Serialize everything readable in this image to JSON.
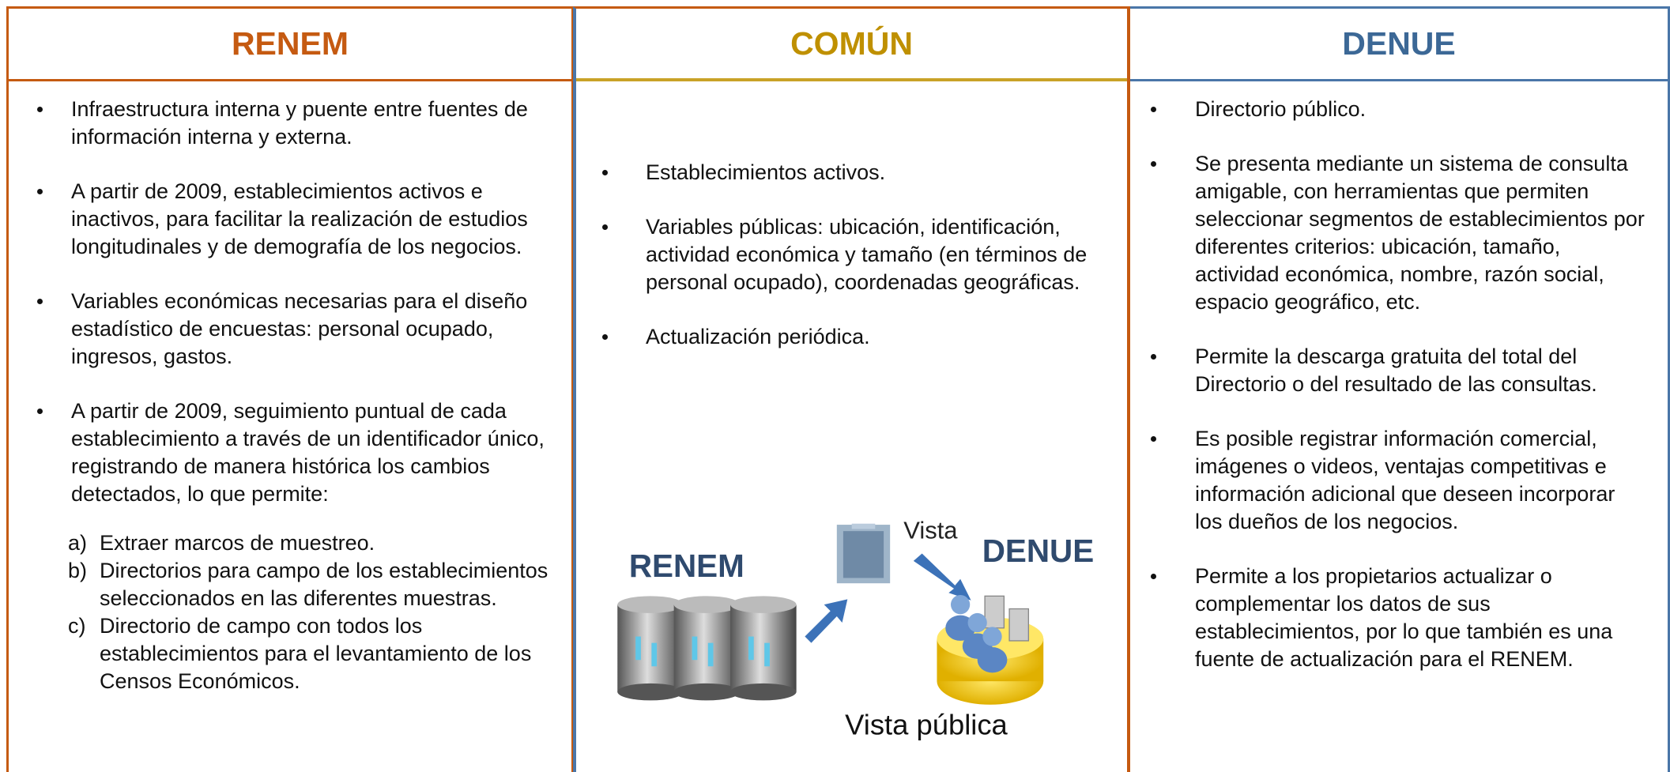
{
  "columns": [
    {
      "title": "RENEM",
      "items": [
        "Infraestructura interna y puente entre fuentes de información interna y externa.",
        "A partir de 2009, establecimientos activos e inactivos, para facilitar la realización de estudios longitudinales y de demografía de los negocios.",
        "Variables económicas necesarias para el diseño estadístico de encuestas: personal ocupado, ingresos, gastos.",
        "A partir de 2009, seguimiento puntual de cada establecimiento a través de un identificador único, registrando de manera histórica los cambios detectados, lo que permite:"
      ],
      "sub_items": [
        {
          "marker": "a)",
          "text": "Extraer marcos de muestreo."
        },
        {
          "marker": "b)",
          "text": "Directorios para campo de los establecimientos seleccionados en las diferentes muestras."
        },
        {
          "marker": "c)",
          "text": "Directorio de campo con todos los establecimientos para el levantamiento de los Censos Económicos."
        }
      ]
    },
    {
      "title": "COMÚN",
      "items": [
        "Establecimientos activos.",
        "Variables públicas: ubicación, identificación, actividad económica y tamaño (en términos de personal ocupado), coordenadas geográficas.",
        "Actualización periódica."
      ]
    },
    {
      "title": "DENUE",
      "items": [
        "Directorio público.",
        "Se presenta mediante un sistema de consulta amigable, con herramientas que permiten seleccionar segmentos de establecimientos por diferentes criterios: ubicación, tamaño, actividad económica, nombre, razón social, espacio geográfico, etc.",
        "Permite la descarga gratuita del total del Directorio o del resultado de las consultas.",
        "Es posible registrar información comercial, imágenes o videos, ventajas competitivas  e información adicional que deseen incorporar los dueños de los negocios.",
        "Permite a los propietarios actualizar o complementar los datos de sus establecimientos, por lo que también es una fuente de actualización para el RENEM."
      ]
    }
  ],
  "diagram": {
    "source_label": "RENEM",
    "target_label": "DENUE",
    "arrow_label": "Vista",
    "caption": "Vista pública"
  }
}
